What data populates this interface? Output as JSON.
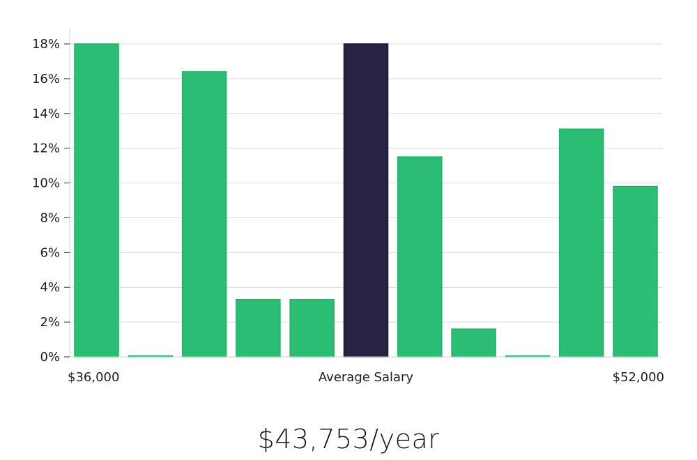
{
  "chart_data": {
    "type": "bar",
    "title": "",
    "xlabel": "Average Salary",
    "ylabel": "",
    "ylim": [
      0,
      18
    ],
    "yticks": [
      0,
      2,
      4,
      6,
      8,
      10,
      12,
      14,
      16,
      18
    ],
    "ytick_labels": [
      "0%",
      "2%",
      "4%",
      "6%",
      "8%",
      "10%",
      "12%",
      "14%",
      "16%",
      "18%"
    ],
    "x_min_label": "$36,000",
    "x_max_label": "$52,000",
    "values": [
      18.0,
      0.0,
      16.4,
      3.3,
      3.3,
      18.0,
      11.5,
      1.6,
      0.0,
      13.1,
      9.8
    ],
    "highlight_index": 5,
    "grid": true,
    "colors": {
      "bar": "#2bbd74",
      "bar_edge": "#22b06a",
      "highlight": "#272342",
      "highlight_edge": "#15122b",
      "grid": "#d9d9d9",
      "axis": "#d0d0d0"
    }
  },
  "summary": {
    "average_salary": "$43,753/year"
  }
}
